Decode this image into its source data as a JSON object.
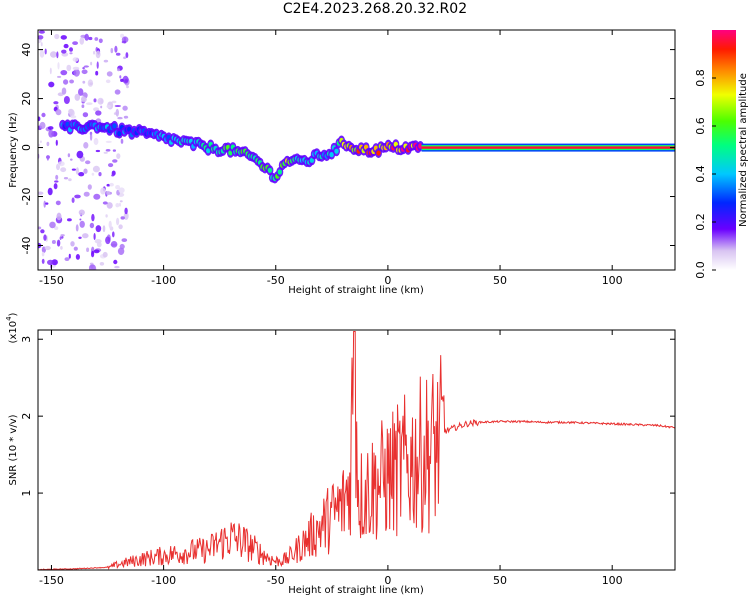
{
  "title": "C2E4.2023.268.20.32.R02",
  "chart_data": [
    {
      "type": "heatmap",
      "xlabel": "Height of straight line (km)",
      "ylabel": "Frequency (Hz)",
      "xlim": [
        -156,
        128
      ],
      "ylim": [
        -50,
        48
      ],
      "xticks": [
        "-150",
        "-100",
        "-50",
        "0",
        "50",
        "100"
      ],
      "yticks": [
        "40",
        "20",
        "0",
        "-20",
        "-40"
      ],
      "ridge": {
        "x": [
          -140,
          -130,
          -120,
          -110,
          -100,
          -90,
          -80,
          -70,
          -60,
          -50,
          -45,
          -40,
          -35,
          -30,
          -25,
          -20,
          -15,
          -10,
          -5,
          0,
          5,
          10,
          15,
          30,
          60,
          100,
          128
        ],
        "y": [
          8,
          9,
          7,
          6,
          4,
          2,
          0,
          -1,
          -4,
          -12,
          -5,
          -6,
          -5,
          -3,
          -2,
          2,
          0,
          -1,
          -1,
          0,
          0,
          0,
          0,
          0,
          0,
          0,
          0
        ],
        "amplitude": [
          0.35,
          0.4,
          0.35,
          0.35,
          0.4,
          0.45,
          0.5,
          0.6,
          0.55,
          0.6,
          0.7,
          0.55,
          0.45,
          0.45,
          0.45,
          0.7,
          0.85,
          0.9,
          0.9,
          0.9,
          0.95,
          0.95,
          1.0,
          1.0,
          1.0,
          1.0,
          1.0
        ]
      },
      "colorbar": {
        "label": "Normalized spectral amplitude",
        "ticks": [
          "0.0",
          "0.2",
          "0.4",
          "0.6",
          "0.8"
        ],
        "range": [
          0,
          1
        ]
      },
      "grid": false
    },
    {
      "type": "line",
      "xlabel": "Height of straight line (km)",
      "ylabel": "SNR (10 * v/v)",
      "yscale_label": "(x10",
      "yscale_exp": "4",
      "xlim": [
        -156,
        128
      ],
      "ylim": [
        0,
        3.12
      ],
      "xticks": [
        "-150",
        "-100",
        "-50",
        "0",
        "50",
        "100"
      ],
      "yticks": [
        "1",
        "2",
        "3"
      ],
      "series": [
        {
          "color": "#e8302f",
          "x": [
            -156,
            -140,
            -125,
            -120,
            -110,
            -100,
            -90,
            -80,
            -75,
            -70,
            -65,
            -60,
            -55,
            -50,
            -45,
            -40,
            -35,
            -30,
            -25,
            -20,
            -17,
            -15,
            -13,
            -10,
            -5,
            0,
            5,
            10,
            15,
            20,
            25,
            30,
            35,
            40,
            50,
            60,
            70,
            80,
            90,
            100,
            110,
            120,
            128
          ],
          "y": [
            0.0,
            0.01,
            0.03,
            0.08,
            0.15,
            0.2,
            0.25,
            0.28,
            0.38,
            0.45,
            0.4,
            0.3,
            0.2,
            0.12,
            0.15,
            0.3,
            0.45,
            0.6,
            0.75,
            0.9,
            1.2,
            3.1,
            1.0,
            1.1,
            1.2,
            1.3,
            1.4,
            1.5,
            1.6,
            1.7,
            1.8,
            1.85,
            1.9,
            1.92,
            1.93,
            1.93,
            1.92,
            1.92,
            1.91,
            1.9,
            1.89,
            1.88,
            1.85
          ]
        }
      ],
      "grid": false
    }
  ]
}
